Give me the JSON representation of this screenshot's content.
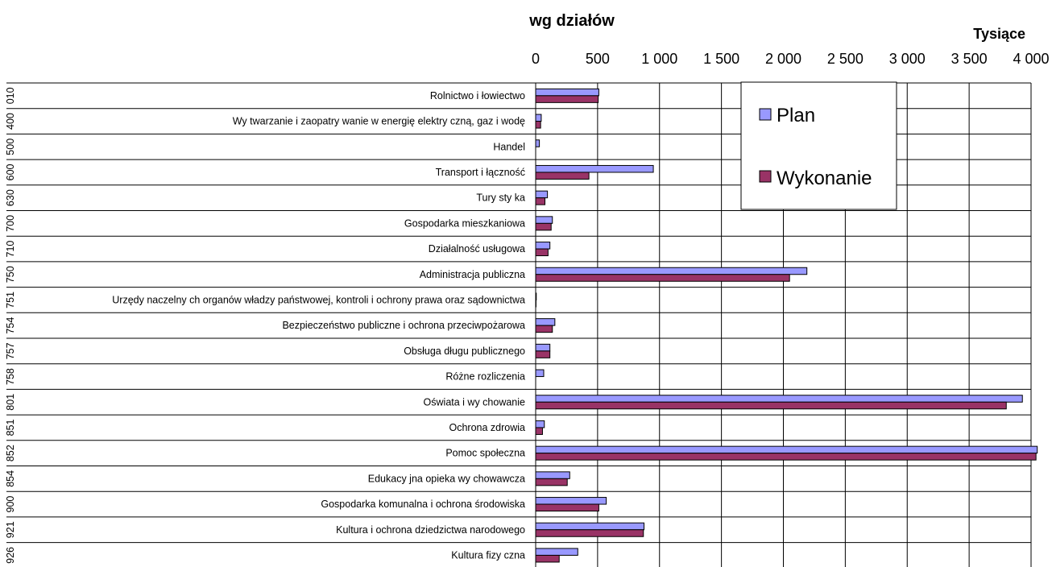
{
  "chart_data": {
    "type": "bar",
    "orientation": "horizontal",
    "title": "wg działów",
    "unit_label": "Tysiące",
    "xlim": [
      0,
      4000
    ],
    "x_ticks": [
      "0",
      "500",
      "1 000",
      "1 500",
      "2 000",
      "2 500",
      "3 000",
      "3 500",
      "4 000"
    ],
    "tick_values": [
      0,
      500,
      1000,
      1500,
      2000,
      2500,
      3000,
      3500,
      4000
    ],
    "codes": [
      "010",
      "400",
      "500",
      "600",
      "630",
      "700",
      "710",
      "750",
      "751",
      "754",
      "757",
      "758",
      "801",
      "851",
      "852",
      "854",
      "900",
      "921",
      "926"
    ],
    "categories": [
      "Rolnictwo i łowiectwo",
      "Wy twarzanie i zaopatry wanie w energię elektry czną, gaz i wodę",
      "Handel",
      "Transport i łączność",
      "Tury sty ka",
      "Gospodarka mieszkaniowa",
      "Działalność usługowa",
      "Administracja publiczna",
      "Urzędy naczelny ch organów władzy państwowej, kontroli i ochrony prawa oraz sądownictwa",
      "Bezpieczeństwo publiczne i ochrona przeciwpożarowa",
      "Obsługa długu publicznego",
      "Różne rozliczenia",
      "Oświata i wy chowanie",
      "Ochrona zdrowia",
      "Pomoc społeczna",
      "Edukacy jna opieka wy chowawcza",
      "Gospodarka komunalna i ochrona środowiska",
      "Kultura i ochrona dziedzictwa narodowego",
      "Kultura fizy czna"
    ],
    "series": [
      {
        "name": "Plan",
        "color": "#9999ff",
        "values": [
          510,
          45,
          30,
          950,
          95,
          135,
          115,
          2190,
          5,
          155,
          115,
          65,
          3930,
          70,
          4050,
          275,
          570,
          875,
          340
        ]
      },
      {
        "name": "Wykonanie",
        "color": "#993366",
        "values": [
          505,
          40,
          0,
          430,
          75,
          125,
          100,
          2050,
          3,
          135,
          115,
          0,
          3800,
          55,
          4040,
          255,
          510,
          870,
          190
        ]
      }
    ],
    "grid": true,
    "legend_position": "top-right"
  }
}
